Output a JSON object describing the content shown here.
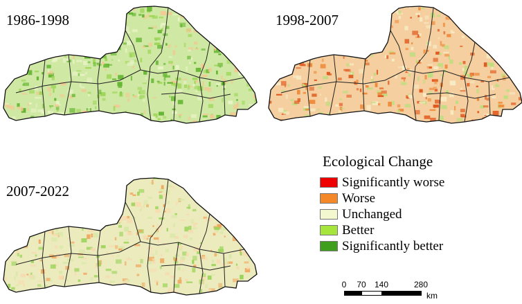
{
  "panels": [
    {
      "title": "1986-1998",
      "base_color": "#cfe9a4",
      "patch_colors": [
        "#9fd65a",
        "#62b52f",
        "#e9f3c6",
        "#f3c892"
      ]
    },
    {
      "title": "1998-2007",
      "base_color": "#f5cf9f",
      "patch_colors": [
        "#ee8a3a",
        "#e05a20",
        "#f7ebc4",
        "#b9df7c"
      ]
    },
    {
      "title": "2007-2022",
      "base_color": "#ecebbe",
      "patch_colors": [
        "#f0a860",
        "#d9e8a8",
        "#9bd45a",
        "#f6dcb0"
      ]
    }
  ],
  "legend": {
    "title": "Ecological Change",
    "items": [
      {
        "label": "Significantly worse",
        "color": "#ee0000"
      },
      {
        "label": "Worse",
        "color": "#f5892a"
      },
      {
        "label": "Unchanged",
        "color": "#f3f8cf"
      },
      {
        "label": "Better",
        "color": "#a6e63c"
      },
      {
        "label": "Significantly better",
        "color": "#3f9e1c"
      }
    ]
  },
  "scale": {
    "ticks": [
      "0",
      "70",
      "140",
      "280"
    ],
    "unit": "km"
  }
}
